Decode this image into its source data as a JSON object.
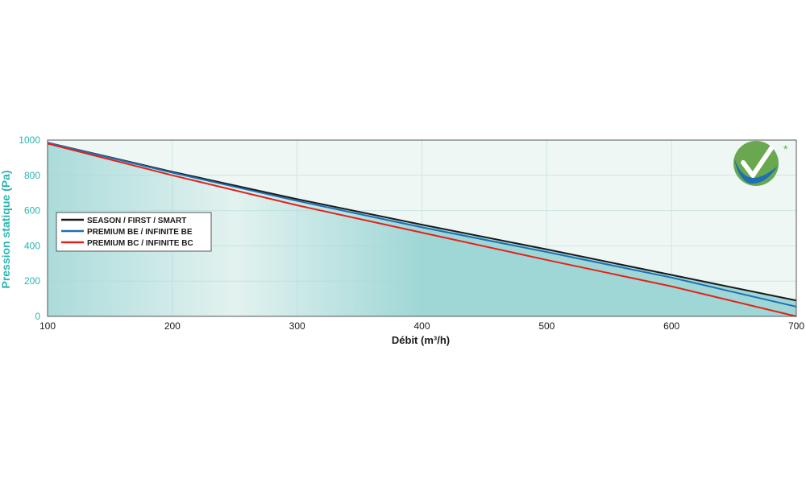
{
  "chart_data": {
    "type": "line",
    "xlabel": "Débit (m³/h)",
    "ylabel": "Pression statique (Pa)",
    "xlim": [
      100,
      700
    ],
    "ylim": [
      0,
      1000
    ],
    "xticks": [
      "100",
      "200",
      "300",
      "400",
      "500",
      "600",
      "700"
    ],
    "yticks": [
      "0",
      "200",
      "400",
      "600",
      "800",
      "1000"
    ],
    "grid": true,
    "legend_position": "left",
    "series": [
      {
        "name": "SEASON / FIRST / SMART",
        "color": "#1a1a1a",
        "x": [
          100,
          200,
          300,
          400,
          500,
          600,
          700
        ],
        "y": [
          985,
          820,
          665,
          520,
          380,
          235,
          90
        ]
      },
      {
        "name": "PREMIUM BE / INFINITE BE",
        "color": "#1f6fb5",
        "x": [
          100,
          200,
          300,
          400,
          500,
          600,
          700
        ],
        "y": [
          985,
          815,
          655,
          505,
          365,
          220,
          55
        ]
      },
      {
        "name": "PREMIUM BC / INFINITE BC",
        "color": "#e2231a",
        "x": [
          100,
          200,
          300,
          400,
          500,
          600,
          700
        ],
        "y": [
          980,
          800,
          630,
          475,
          320,
          170,
          0
        ]
      }
    ],
    "fill_color": "#9fd7d6",
    "plot_background": "#eef7f4",
    "badge_symbol": "*",
    "badge_colors": [
      "#6aa84f",
      "#1f6fb5"
    ]
  }
}
